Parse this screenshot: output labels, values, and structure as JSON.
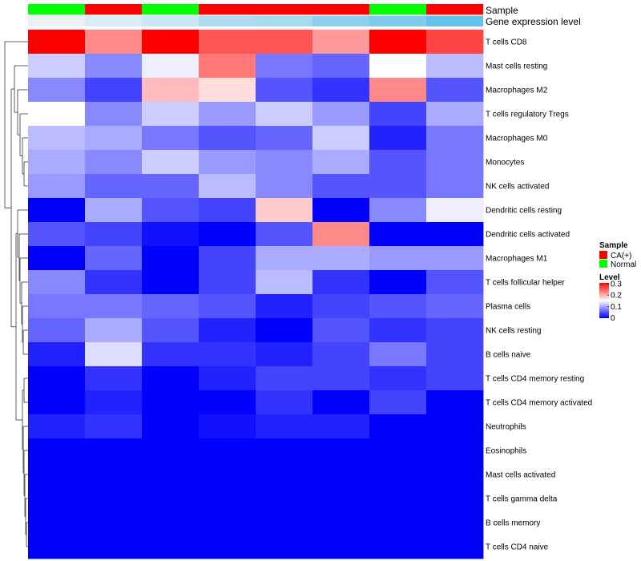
{
  "chart_data": {
    "type": "heatmap",
    "annotations": {
      "sample_label": "Sample",
      "gene_label": "Gene expression level",
      "sample": [
        "Normal",
        "CA(+)",
        "Normal",
        "CA(+)",
        "CA(+)",
        "CA(+)",
        "Normal",
        "CA(+)"
      ],
      "gene_expression": [
        0.05,
        0.1,
        0.15,
        0.3,
        0.35,
        0.7,
        0.85,
        0.9
      ]
    },
    "rows": [
      "T cells CD8",
      "Mast cells resting",
      "Macrophages M2",
      "T cells regulatory  Tregs",
      "Macrophages M0",
      "Monocytes",
      "NK cells activated",
      "Dendritic cells resting",
      "Dendritic cells activated",
      "Macrophages M1",
      "T cells follicular helper",
      "Plasma cells",
      "NK cells resting",
      "B cells naive",
      "T cells CD4 memory resting",
      "T cells CD4 memory activated",
      "Neutrophils",
      "Eosinophils",
      "Mast cells activated",
      "T cells gamma delta",
      "B cells memory",
      "T cells CD4 naive"
    ],
    "values": [
      [
        0.3,
        0.22,
        0.3,
        0.25,
        0.25,
        0.21,
        0.3,
        0.26
      ],
      [
        0.12,
        0.08,
        0.14,
        0.23,
        0.07,
        0.06,
        0.15,
        0.11
      ],
      [
        0.08,
        0.04,
        0.19,
        0.17,
        0.05,
        0.03,
        0.22,
        0.05
      ],
      [
        0.15,
        0.08,
        0.12,
        0.09,
        0.12,
        0.09,
        0.04,
        0.1
      ],
      [
        0.11,
        0.1,
        0.07,
        0.05,
        0.06,
        0.12,
        0.02,
        0.07
      ],
      [
        0.1,
        0.08,
        0.12,
        0.09,
        0.08,
        0.1,
        0.05,
        0.07
      ],
      [
        0.09,
        0.06,
        0.06,
        0.11,
        0.08,
        0.05,
        0.05,
        0.07
      ],
      [
        0.0,
        0.1,
        0.05,
        0.04,
        0.18,
        0.0,
        0.08,
        0.14
      ],
      [
        0.05,
        0.04,
        0.01,
        0.0,
        0.05,
        0.22,
        0.0,
        0.0
      ],
      [
        0.0,
        0.06,
        0.0,
        0.04,
        0.1,
        0.1,
        0.09,
        0.09
      ],
      [
        0.08,
        0.03,
        0.0,
        0.04,
        0.11,
        0.03,
        0.0,
        0.05
      ],
      [
        0.07,
        0.07,
        0.06,
        0.05,
        0.02,
        0.04,
        0.05,
        0.06
      ],
      [
        0.06,
        0.1,
        0.05,
        0.02,
        0.0,
        0.05,
        0.03,
        0.04
      ],
      [
        0.02,
        0.13,
        0.03,
        0.03,
        0.02,
        0.04,
        0.07,
        0.04
      ],
      [
        0.0,
        0.03,
        0.0,
        0.02,
        0.04,
        0.04,
        0.03,
        0.04
      ],
      [
        0.0,
        0.02,
        0.0,
        0.0,
        0.03,
        0.0,
        0.04,
        0.0
      ],
      [
        0.02,
        0.03,
        0.0,
        0.01,
        0.02,
        0.02,
        0.0,
        0.0
      ],
      [
        0.0,
        0.0,
        0.0,
        0.0,
        0.0,
        0.0,
        0.0,
        0.0
      ],
      [
        0.0,
        0.0,
        0.0,
        0.0,
        0.0,
        0.0,
        0.0,
        0.0
      ],
      [
        0.0,
        0.0,
        0.0,
        0.0,
        0.0,
        0.0,
        0.0,
        0.0
      ],
      [
        0.0,
        0.0,
        0.0,
        0.0,
        0.0,
        0.0,
        0.0,
        0.0
      ],
      [
        0.0,
        0.0,
        0.0,
        0.0,
        0.0,
        0.0,
        0.0,
        0.0
      ]
    ],
    "color_scale": {
      "low": "#0000ff",
      "mid": "#ffffff",
      "high": "#ff0000",
      "domain": [
        0,
        0.3
      ]
    },
    "legend": {
      "sample_title": "Sample",
      "sample_entries": [
        {
          "label": "CA(+)",
          "color": "#ff0000"
        },
        {
          "label": "Normal",
          "color": "#00ff00"
        }
      ],
      "level_title": "Level",
      "level_ticks": [
        "0.3",
        "0.2",
        "0.1",
        "0"
      ],
      "placement": "right"
    },
    "gene_colors": [
      "#eaf2f8",
      "#d8edf6",
      "#c9e7f4",
      "#aedcf0",
      "#a7daf0",
      "#8dd0ee",
      "#7fcbed",
      "#63c2ea"
    ]
  }
}
